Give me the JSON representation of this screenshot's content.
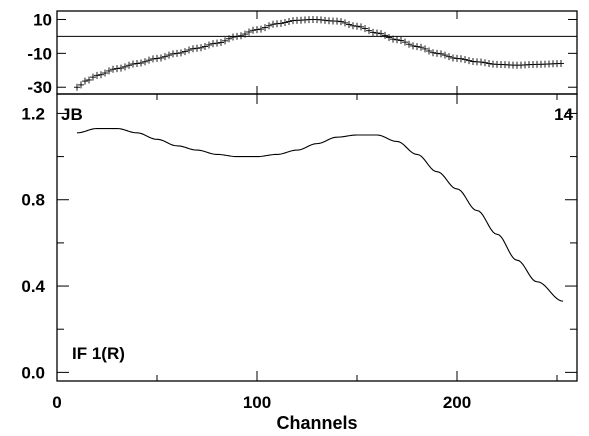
{
  "chart_data": [
    {
      "type": "scatter",
      "panel": "phase",
      "xlim": [
        0,
        260
      ],
      "ylim": [
        -34,
        15
      ],
      "yticks": [
        10,
        -10,
        -30
      ],
      "ytick_labels": [
        "10",
        "-10",
        "-30"
      ],
      "zero_line": 0,
      "x_start": 10,
      "x_end": 253,
      "x_step": 2,
      "x": [
        10,
        15,
        20,
        30,
        40,
        50,
        60,
        70,
        80,
        90,
        100,
        110,
        120,
        128,
        140,
        150,
        160,
        170,
        180,
        190,
        200,
        210,
        220,
        230,
        240,
        253
      ],
      "y": [
        -30,
        -26,
        -23,
        -19,
        -16,
        -13,
        -10,
        -7,
        -4,
        0,
        4,
        7.5,
        9.5,
        10,
        9,
        6,
        2,
        -2,
        -6,
        -10,
        -13,
        -15,
        -16.5,
        -17,
        -16.5,
        -16
      ]
    },
    {
      "type": "line",
      "panel": "amplitude",
      "baseline": "JB",
      "antenna": "14",
      "annotation": "IF 1(R)",
      "xlabel": "Channels",
      "xlim": [
        0,
        260
      ],
      "ylim": [
        -0.04,
        1.29
      ],
      "xticks": [
        0,
        100,
        200
      ],
      "xtick_labels": [
        "0",
        "100",
        "200"
      ],
      "yticks": [
        0.0,
        0.4,
        0.8,
        1.2
      ],
      "ytick_labels": [
        "0.0",
        "0.4",
        "0.8",
        "1.2"
      ],
      "x": [
        10,
        20,
        30,
        40,
        50,
        60,
        70,
        80,
        90,
        100,
        110,
        120,
        130,
        140,
        150,
        160,
        170,
        180,
        190,
        200,
        210,
        220,
        230,
        240,
        253
      ],
      "y": [
        1.11,
        1.13,
        1.13,
        1.11,
        1.08,
        1.05,
        1.03,
        1.01,
        1.0,
        1.0,
        1.01,
        1.03,
        1.06,
        1.09,
        1.1,
        1.1,
        1.07,
        1.01,
        0.93,
        0.85,
        0.75,
        0.64,
        0.52,
        0.42,
        0.33
      ]
    }
  ]
}
